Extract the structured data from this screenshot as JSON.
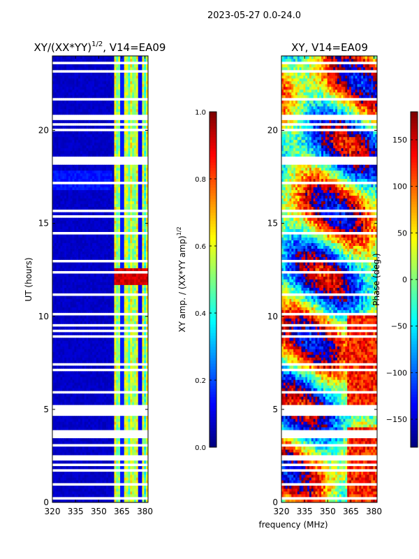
{
  "figure_title": "2023-05-27 0.0-24.0",
  "xlabel_shared": "frequency (MHz)",
  "chart_data": [
    {
      "type": "heatmap",
      "title_prefix": "XY/(XX*YY)",
      "title_sup": "1/2",
      "title_suffix": ", V14=EA09",
      "ylabel": "UT (hours)",
      "x_ticks": [
        "320",
        "335",
        "350",
        "365",
        "380"
      ],
      "x_tick_values": [
        320,
        335,
        350,
        365,
        380
      ],
      "y_ticks": [
        "0",
        "5",
        "10",
        "15",
        "20"
      ],
      "y_tick_values": [
        0,
        5,
        10,
        15,
        20
      ],
      "xlim": [
        320,
        382
      ],
      "ylim": [
        0,
        24
      ],
      "colormap": "jet",
      "colorbar": {
        "label_main": "XY amp. / (XX*YY amp)",
        "label_sup": "1/2",
        "ticks": [
          "0.0",
          "0.2",
          "0.4",
          "0.6",
          "0.8",
          "1.0"
        ],
        "tick_values": [
          0.0,
          0.2,
          0.4,
          0.6,
          0.8,
          1.0
        ],
        "range": [
          0,
          1
        ]
      },
      "notes": "Values near 0.05 (dark blue) for 320-359 MHz; bright vertical bands (0.3-0.7) between ~360 and 382 MHz; high values (~0.9) near 12 UT at 360-380 MHz; white horizontal rows are flagged data."
    },
    {
      "type": "heatmap",
      "title": "XY, V14=EA09",
      "x_ticks": [
        "320",
        "335",
        "350",
        "365",
        "380"
      ],
      "x_tick_values": [
        320,
        335,
        350,
        365,
        380
      ],
      "y_ticks": [
        "0",
        "5",
        "10",
        "15",
        "20"
      ],
      "y_tick_values": [
        0,
        5,
        10,
        15,
        20
      ],
      "xlim": [
        320,
        382
      ],
      "ylim": [
        0,
        24
      ],
      "colormap": "jet",
      "colorbar": {
        "label": "Phase (deg.)",
        "ticks": [
          "150",
          "100",
          "50",
          "0",
          "−50",
          "−100",
          "−150"
        ],
        "tick_values": [
          150,
          100,
          50,
          0,
          -50,
          -100,
          -150
        ],
        "range": [
          -180,
          180
        ]
      },
      "notes": "Phase varies broadly between -180 and 180 degrees with noisy structure; white horizontal rows are flagged data."
    }
  ]
}
